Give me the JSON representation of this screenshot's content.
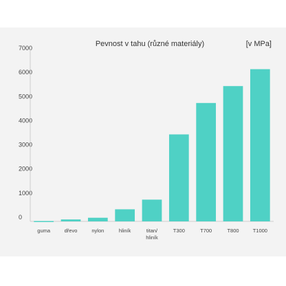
{
  "chart_data": {
    "type": "bar",
    "title": "Pevnost v tahu (různé materiály)",
    "unit_label": "[v MPa]",
    "categories": [
      [
        "guma"
      ],
      [
        "dřevo"
      ],
      [
        "nylon"
      ],
      [
        "hliník"
      ],
      [
        "titan/",
        "hliník"
      ],
      [
        "T300"
      ],
      [
        "T700"
      ],
      [
        "T800"
      ],
      [
        "T1000"
      ]
    ],
    "values": [
      15,
      80,
      150,
      500,
      900,
      3600,
      4900,
      5600,
      6300
    ],
    "ylim": [
      0,
      7000
    ],
    "yticks": [
      "0",
      "1000",
      "2000",
      "3000",
      "4000",
      "5000",
      "6000",
      "7000"
    ],
    "grid": false,
    "colors": {
      "bar": "#4fd1c5",
      "background": "#f3f3f3",
      "axis": "#cccccc"
    }
  }
}
